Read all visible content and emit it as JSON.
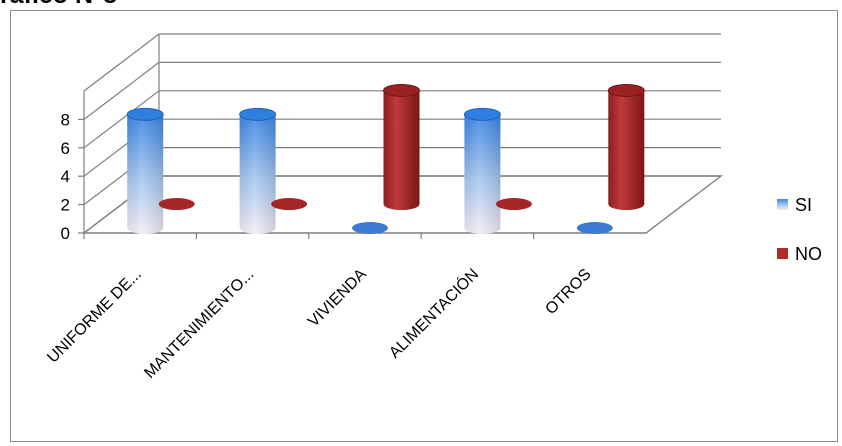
{
  "header": {
    "cut_title": "ráfico N°8"
  },
  "colors": {
    "SI": "#4f8fdf",
    "NO": "#b02a2a",
    "grid": "#7f7f7f"
  },
  "chart_data": {
    "type": "bar",
    "subtype": "3d-cylinder",
    "title": "",
    "xlabel": "",
    "ylabel": "",
    "categories": [
      "UNIFORME DE...",
      "MANTENIMIENTO...",
      "VIVIENDA",
      "ALIMENTACIÓN",
      "OTROS"
    ],
    "series": [
      {
        "name": "SI",
        "values": [
          8,
          8,
          0,
          8,
          0
        ]
      },
      {
        "name": "NO",
        "values": [
          0,
          0,
          8,
          0,
          8
        ]
      }
    ],
    "ylim": [
      0,
      8
    ],
    "yticks": [
      "0",
      "2",
      "4",
      "6",
      "8"
    ],
    "grid": true,
    "legend": "right"
  }
}
